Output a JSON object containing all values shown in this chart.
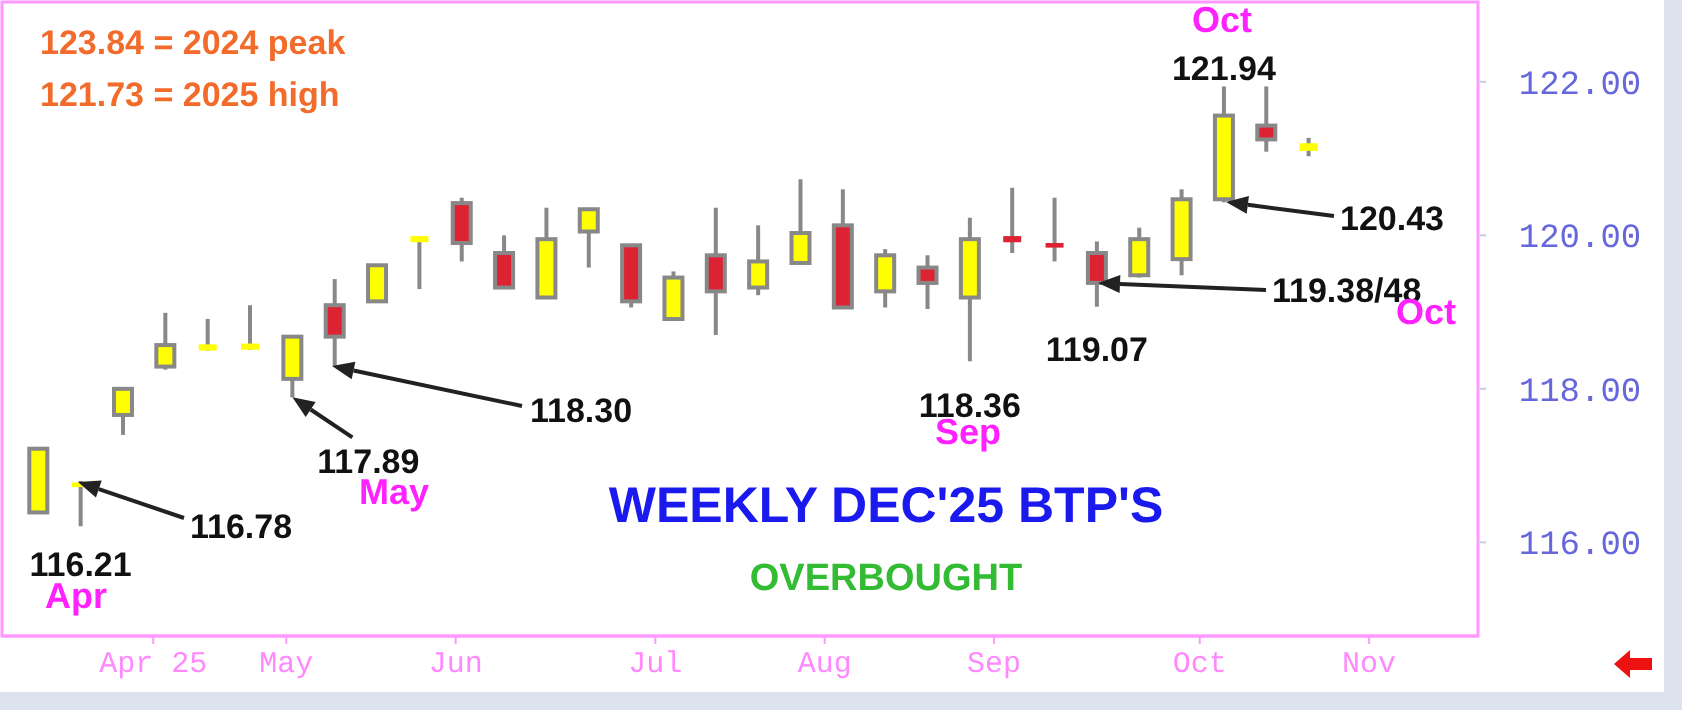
{
  "chart_data": {
    "type": "candlestick",
    "title": "WEEKLY DEC'25 BTP'S",
    "subtitle": "OVERBOUGHT",
    "x": [
      "2025-04-04",
      "2025-04-11",
      "2025-04-18",
      "2025-04-25",
      "2025-05-02",
      "2025-05-09",
      "2025-05-16",
      "2025-05-23",
      "2025-05-30",
      "2025-06-06",
      "2025-06-13",
      "2025-06-20",
      "2025-06-27",
      "2025-07-04",
      "2025-07-11",
      "2025-07-18",
      "2025-07-25",
      "2025-08-01",
      "2025-08-08",
      "2025-08-15",
      "2025-08-22",
      "2025-08-29",
      "2025-09-05",
      "2025-09-12",
      "2025-09-19",
      "2025-09-26",
      "2025-10-03",
      "2025-10-10",
      "2025-10-17",
      "2025-10-24",
      "2025-10-31"
    ],
    "ohlc": [
      [
        116.39,
        117.22,
        116.39,
        117.22
      ],
      [
        116.72,
        116.8,
        116.21,
        116.78
      ],
      [
        117.66,
        118.0,
        117.4,
        118.0
      ],
      [
        118.29,
        118.99,
        118.25,
        118.57
      ],
      [
        118.5,
        118.91,
        118.5,
        118.58
      ],
      [
        118.51,
        119.09,
        118.51,
        118.59
      ],
      [
        118.13,
        118.68,
        117.89,
        118.68
      ],
      [
        119.09,
        119.43,
        118.3,
        118.68
      ],
      [
        119.14,
        119.61,
        119.14,
        119.61
      ],
      [
        119.91,
        119.99,
        119.3,
        119.99
      ],
      [
        120.42,
        120.49,
        119.66,
        119.9
      ],
      [
        119.77,
        120.0,
        119.32,
        119.32
      ],
      [
        119.19,
        120.36,
        119.19,
        119.95
      ],
      [
        120.05,
        120.36,
        119.58,
        120.34
      ],
      [
        119.87,
        119.87,
        119.06,
        119.14
      ],
      [
        118.91,
        119.53,
        118.91,
        119.45
      ],
      [
        119.74,
        120.36,
        118.7,
        119.27
      ],
      [
        119.32,
        120.13,
        119.22,
        119.66
      ],
      [
        119.64,
        120.73,
        119.64,
        120.03
      ],
      [
        120.13,
        120.6,
        119.06,
        119.06
      ],
      [
        119.27,
        119.82,
        119.06,
        119.74
      ],
      [
        119.58,
        119.74,
        119.04,
        119.38
      ],
      [
        119.19,
        120.23,
        118.36,
        119.95
      ],
      [
        119.99,
        120.62,
        119.77,
        119.91
      ],
      [
        119.9,
        120.49,
        119.66,
        119.84
      ],
      [
        119.77,
        119.92,
        119.07,
        119.38
      ],
      [
        119.48,
        120.1,
        119.45,
        119.95
      ],
      [
        119.69,
        120.6,
        119.48,
        120.47
      ],
      [
        120.47,
        121.94,
        120.43,
        121.56
      ],
      [
        121.43,
        121.94,
        121.09,
        121.25
      ],
      [
        121.1,
        121.27,
        121.03,
        121.2
      ]
    ],
    "colors": [
      "#ffff00",
      "#ffff00",
      "#ffff00",
      "#ffff00",
      "#ffff00",
      "#ffff00",
      "#ffff00",
      "#dd2233",
      "#ffff00",
      "#ffff00",
      "#dd2233",
      "#dd2233",
      "#ffff00",
      "#ffff00",
      "#dd2233",
      "#ffff00",
      "#dd2233",
      "#ffff00",
      "#ffff00",
      "#dd2233",
      "#ffff00",
      "#dd2233",
      "#ffff00",
      "#dd2233",
      "#dd2233",
      "#dd2233",
      "#ffff00",
      "#ffff00",
      "#ffff00",
      "#dd2233",
      "#ffff00"
    ],
    "xlim": [
      "2025-03-29",
      "2025-11-28"
    ],
    "xticks": [
      {
        "value": "2025-04-23",
        "label": "Apr 25"
      },
      {
        "value": "2025-05-15",
        "label": "May"
      },
      {
        "value": "2025-06-12",
        "label": "Jun"
      },
      {
        "value": "2025-07-15",
        "label": "Jul"
      },
      {
        "value": "2025-08-12",
        "label": "Aug"
      },
      {
        "value": "2025-09-09",
        "label": "Sep"
      },
      {
        "value": "2025-10-13",
        "label": "Oct"
      },
      {
        "value": "2025-11-10",
        "label": "Nov"
      }
    ],
    "ylim": [
      114.78,
      123.04
    ],
    "yticks": [
      {
        "value": 116,
        "label": "116.00"
      },
      {
        "value": 118,
        "label": "118.00"
      },
      {
        "value": 120,
        "label": "120.00"
      },
      {
        "value": 122,
        "label": "122.00"
      }
    ],
    "grid": false,
    "annotations": [
      "123.84 = 2024 peak",
      "121.73 = 2025 high",
      {
        "text": "116.21",
        "x": "2025-04-11",
        "y": 116.21
      },
      "Apr",
      "116.78",
      {
        "text": "117.89",
        "x": "2025-05-16",
        "y": 117.89
      },
      "May",
      "118.30",
      {
        "text": "118.36",
        "x": "2025-09-05",
        "y": 118.36
      },
      "Sep",
      {
        "text": "119.07",
        "x": "2025-09-26",
        "y": 119.07
      },
      "119.38/48",
      "Oct",
      "Oct",
      {
        "text": "121.94",
        "x": "2025-10-17",
        "y": 121.94
      },
      "120.43"
    ]
  }
}
